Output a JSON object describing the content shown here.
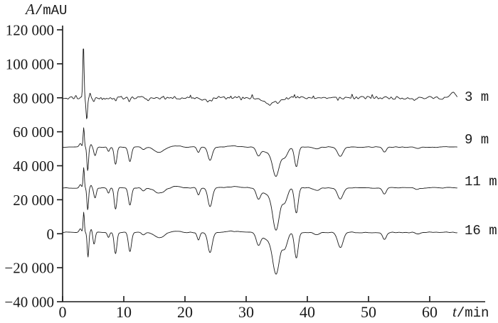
{
  "chart_data": {
    "type": "line",
    "title": "",
    "ylabel": "A/mAU",
    "ylabel_var": "A",
    "ylabel_unit": "/mAU",
    "xlabel": "t/min",
    "xlabel_var": "t",
    "xlabel_unit": "/min",
    "xlim": [
      0,
      65
    ],
    "ylim": [
      -40000,
      120000
    ],
    "x_end": 64.5,
    "grid": false,
    "background": "#ffffff",
    "axis_color": "#1a1a1a",
    "line_color": "#1a1a1a",
    "legend_position": "right-of-traces",
    "x_ticks": [
      {
        "t": 0,
        "label": "0"
      },
      {
        "t": 10,
        "label": "10"
      },
      {
        "t": 20,
        "label": "20"
      },
      {
        "t": 30,
        "label": "30"
      },
      {
        "t": 40,
        "label": "40"
      },
      {
        "t": 50,
        "label": "50"
      },
      {
        "t": 60,
        "label": "60"
      }
    ],
    "y_ticks": [
      {
        "v": 120000,
        "label": "120 000"
      },
      {
        "v": 100000,
        "label": "100 000"
      },
      {
        "v": 80000,
        "label": "80 000"
      },
      {
        "v": 60000,
        "label": "60 000"
      },
      {
        "v": 40000,
        "label": "40 000"
      },
      {
        "v": 20000,
        "label": "20 000"
      },
      {
        "v": 0,
        "label": "0"
      },
      {
        "v": -20000,
        "label": "−20 000"
      },
      {
        "v": -40000,
        "label": "−40 000"
      }
    ],
    "series": [
      {
        "name": "3 m",
        "baseline": 80000,
        "label_value": 80000,
        "noise_amp": 900,
        "noise_knot": 0.3,
        "seed": 11,
        "peaks": [
          [
            2.2,
            1200,
            0.12
          ],
          [
            3.4,
            31500,
            0.1
          ],
          [
            3.95,
            -12500,
            0.12
          ],
          [
            4.5,
            2500,
            0.1
          ],
          [
            5.1,
            -2200,
            0.15
          ],
          [
            6.5,
            -1500,
            0.12
          ],
          [
            8.7,
            -2500,
            0.13
          ],
          [
            10.9,
            -1500,
            0.12
          ],
          [
            14.0,
            -1800,
            0.18
          ],
          [
            16.5,
            1500,
            0.1
          ],
          [
            20.9,
            1900,
            0.08
          ],
          [
            23.5,
            -1800,
            0.5
          ],
          [
            24.4,
            -1500,
            0.15
          ],
          [
            27.5,
            1500,
            0.09
          ],
          [
            29.2,
            -1600,
            0.12
          ],
          [
            31.0,
            1900,
            0.08
          ],
          [
            33.8,
            -3800,
            1.0
          ],
          [
            35.3,
            -1500,
            0.25
          ],
          [
            36.6,
            1000,
            0.1
          ],
          [
            37.9,
            2100,
            0.08
          ],
          [
            41.0,
            1700,
            0.08
          ],
          [
            45.0,
            -2000,
            0.12
          ],
          [
            47.3,
            2000,
            0.08
          ],
          [
            50.6,
            2200,
            0.09
          ],
          [
            57.5,
            -1200,
            0.15
          ],
          [
            63.8,
            2600,
            0.45
          ]
        ]
      },
      {
        "name": "9 m",
        "baseline": 51000,
        "label_value": 55000,
        "noise_amp": 260,
        "noise_knot": 0.55,
        "seed": 23,
        "peaks": [
          [
            2.9,
            2000,
            0.18
          ],
          [
            3.45,
            11500,
            0.1
          ],
          [
            4.1,
            -14000,
            0.13
          ],
          [
            4.65,
            1500,
            0.12
          ],
          [
            5.3,
            -5000,
            0.2
          ],
          [
            7.5,
            -2500,
            0.18
          ],
          [
            8.65,
            -10000,
            0.22
          ],
          [
            11.0,
            -8500,
            0.25
          ],
          [
            13.2,
            -1500,
            0.3
          ],
          [
            15.8,
            -3000,
            0.8
          ],
          [
            18.5,
            800,
            0.7
          ],
          [
            22.2,
            -3000,
            0.22
          ],
          [
            24.1,
            -8000,
            0.35
          ],
          [
            28.0,
            600,
            1.2
          ],
          [
            32.0,
            -4500,
            0.35
          ],
          [
            33.5,
            -3000,
            0.8
          ],
          [
            34.9,
            -16500,
            0.55
          ],
          [
            36.3,
            -6000,
            0.45
          ],
          [
            38.2,
            -11500,
            0.3
          ],
          [
            41.5,
            -1200,
            0.5
          ],
          [
            45.4,
            -5500,
            0.45
          ],
          [
            52.6,
            -3000,
            0.3
          ],
          [
            58.0,
            -800,
            0.4
          ]
        ]
      },
      {
        "name": "11 m",
        "baseline": 27000,
        "label_value": 30000,
        "noise_amp": 260,
        "noise_knot": 0.55,
        "seed": 37,
        "peaks": [
          [
            2.9,
            2000,
            0.18
          ],
          [
            3.45,
            12000,
            0.1
          ],
          [
            4.1,
            -13000,
            0.13
          ],
          [
            4.65,
            1500,
            0.12
          ],
          [
            5.3,
            -6000,
            0.2
          ],
          [
            7.5,
            -3000,
            0.18
          ],
          [
            8.65,
            -12500,
            0.22
          ],
          [
            11.0,
            -10000,
            0.25
          ],
          [
            13.2,
            -1700,
            0.3
          ],
          [
            15.8,
            -3200,
            0.8
          ],
          [
            18.5,
            800,
            0.7
          ],
          [
            22.2,
            -4000,
            0.22
          ],
          [
            24.1,
            -11000,
            0.35
          ],
          [
            28.0,
            600,
            1.2
          ],
          [
            32.0,
            -6000,
            0.35
          ],
          [
            33.5,
            -3500,
            0.8
          ],
          [
            34.9,
            -24000,
            0.55
          ],
          [
            36.3,
            -8000,
            0.45
          ],
          [
            38.2,
            -15000,
            0.3
          ],
          [
            41.5,
            -1500,
            0.5
          ],
          [
            45.4,
            -6500,
            0.45
          ],
          [
            52.6,
            -3500,
            0.3
          ],
          [
            58.0,
            -900,
            0.4
          ]
        ]
      },
      {
        "name": "16 m",
        "baseline": 800,
        "label_value": 1500,
        "noise_amp": 280,
        "noise_knot": 0.55,
        "seed": 51,
        "peaks": [
          [
            2.9,
            2000,
            0.18
          ],
          [
            3.45,
            12000,
            0.1
          ],
          [
            4.15,
            -14500,
            0.13
          ],
          [
            4.7,
            2000,
            0.12
          ],
          [
            5.15,
            -7000,
            0.18
          ],
          [
            7.5,
            -3000,
            0.18
          ],
          [
            8.65,
            -12500,
            0.22
          ],
          [
            11.0,
            -11500,
            0.25
          ],
          [
            13.2,
            -1700,
            0.3
          ],
          [
            15.8,
            -3200,
            0.8
          ],
          [
            18.5,
            800,
            0.7
          ],
          [
            22.2,
            -4500,
            0.22
          ],
          [
            24.1,
            -12000,
            0.35
          ],
          [
            28.0,
            700,
            1.2
          ],
          [
            32.0,
            -7000,
            0.35
          ],
          [
            33.5,
            -4000,
            0.8
          ],
          [
            34.9,
            -23500,
            0.55
          ],
          [
            36.3,
            -9000,
            0.45
          ],
          [
            38.2,
            -15000,
            0.3
          ],
          [
            41.5,
            -1500,
            0.5
          ],
          [
            45.4,
            -9000,
            0.45
          ],
          [
            52.6,
            -4000,
            0.3
          ],
          [
            58.0,
            -1000,
            0.4
          ]
        ]
      }
    ]
  }
}
